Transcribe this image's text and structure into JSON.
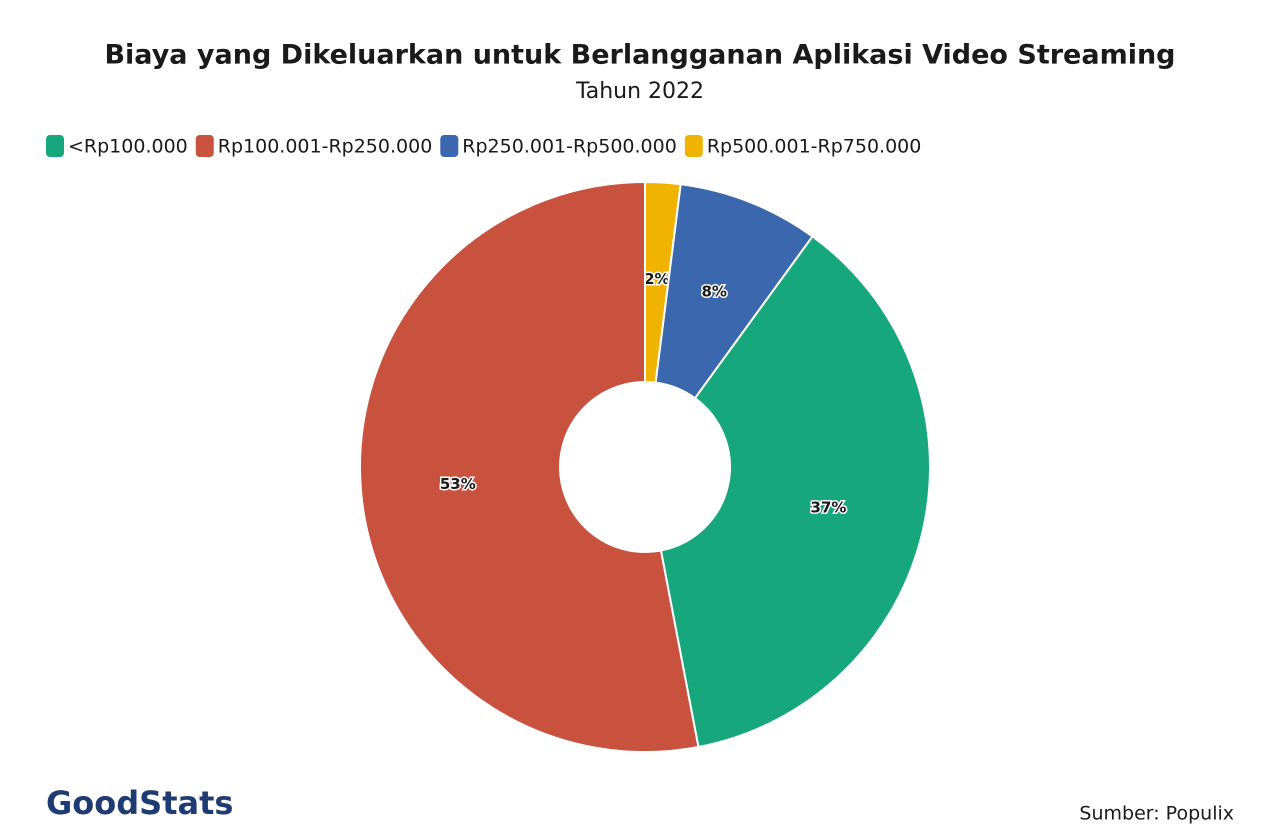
{
  "chart_data": {
    "type": "donut",
    "title": "Biaya yang Dikeluarkan untuk Berlangganan Aplikasi Video Streaming",
    "subtitle": "Tahun 2022",
    "categories": [
      "<Rp100.000",
      "Rp100.001-Rp250.000",
      "Rp250.001-Rp500.000",
      "Rp500.001-Rp750.000"
    ],
    "values": [
      37,
      53,
      8,
      2
    ],
    "value_labels": [
      "37%",
      "53%",
      "8%",
      "2%"
    ],
    "colors": [
      "#16a87c",
      "#c9523f",
      "#3a67ae",
      "#f0b400"
    ],
    "legend": "top-left",
    "source": "Sumber: Populix",
    "logo": "GoodStats"
  }
}
